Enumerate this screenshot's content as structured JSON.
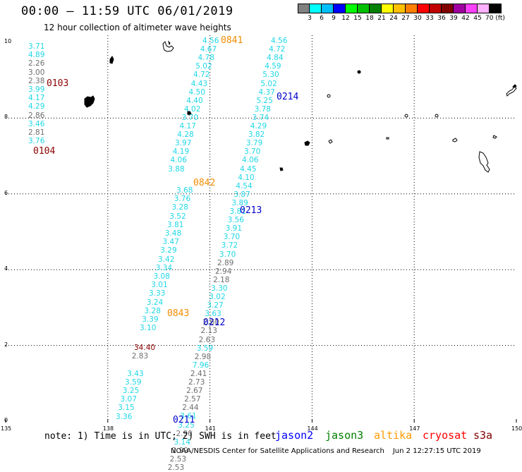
{
  "header": {
    "title": "00:00 – 11:59 UTC 06/01/2019",
    "subtitle": "12 hour collection of altimeter wave heights"
  },
  "legend": {
    "colors": [
      "#808080",
      "#00ffff",
      "#00bfff",
      "#0000ff",
      "#00ff00",
      "#00c000",
      "#008000",
      "#ffff00",
      "#ffc000",
      "#ff8000",
      "#ff0000",
      "#c00000",
      "#800000",
      "#a000a0",
      "#ff40ff",
      "#ffb0ff",
      "#000000"
    ],
    "labels": [
      "3",
      "6",
      "9",
      "12",
      "15",
      "18",
      "21",
      "24",
      "27",
      "30",
      "33",
      "36",
      "39",
      "42",
      "45",
      "70 (ft)"
    ]
  },
  "axes": {
    "x_ticks": [
      "135",
      "138",
      "141",
      "144",
      "147",
      "150"
    ],
    "y_ticks": [
      "0",
      "2",
      "4",
      "6",
      "8",
      "10"
    ]
  },
  "colors": {
    "cyan": "#1fd7e6",
    "gray": "#6e6e6e",
    "darkred": "#8b0000",
    "orange": "#f28c00",
    "blue": "#0000cc"
  },
  "tracks": [
    {
      "id": "t0103",
      "color": "gray",
      "anchor": [
        40,
        66
      ],
      "dx": 0,
      "dy": 12.2,
      "values": [
        {
          "v": "3.71",
          "c": "cyan"
        },
        {
          "v": "4.89",
          "c": "cyan"
        },
        {
          "v": "2.26",
          "c": "gray"
        },
        {
          "v": "3.00",
          "c": "gray"
        },
        {
          "v": "2.38",
          "c": "gray"
        },
        {
          "v": "3.99",
          "c": "cyan"
        },
        {
          "v": "4.17",
          "c": "cyan"
        },
        {
          "v": "4.29",
          "c": "cyan"
        },
        {
          "v": "2.86",
          "c": "gray"
        },
        {
          "v": "3.46",
          "c": "cyan"
        },
        {
          "v": "2.81",
          "c": "gray"
        },
        {
          "v": "3.76",
          "c": "cyan"
        }
      ]
    },
    {
      "id": "t0841",
      "color": "cyan",
      "anchor": [
        287,
        58
      ],
      "dx": -1.3,
      "dy": 12.1,
      "values": [
        {
          "v": "4.56",
          "c": "cyan"
        },
        {
          "v": "4.67",
          "c": "cyan"
        },
        {
          "v": "4.78",
          "c": "cyan"
        },
        {
          "v": "5.02",
          "c": "cyan"
        },
        {
          "v": "4.72",
          "c": "cyan"
        },
        {
          "v": "4.43",
          "c": "cyan"
        },
        {
          "v": "4.50",
          "c": "cyan"
        },
        {
          "v": "4.40",
          "c": "cyan"
        },
        {
          "v": "4.02",
          "c": "cyan"
        },
        {
          "v": "3.70",
          "c": "cyan"
        },
        {
          "v": "4.17",
          "c": "cyan"
        },
        {
          "v": "4.28",
          "c": "cyan"
        },
        {
          "v": "3.97",
          "c": "cyan"
        },
        {
          "v": "4.19",
          "c": "cyan"
        },
        {
          "v": "4.06",
          "c": "cyan"
        },
        {
          "v": "3.88",
          "c": "cyan"
        }
      ]
    },
    {
      "id": "t0842",
      "color": "cyan",
      "anchor": [
        250,
        270
      ],
      "dx": -1.3,
      "dy": 12.2,
      "values": [
        {
          "v": "3.68",
          "c": "cyan"
        },
        {
          "v": "3.76",
          "c": "cyan"
        },
        {
          "v": "3.28",
          "c": "cyan"
        },
        {
          "v": "3.52",
          "c": "cyan"
        },
        {
          "v": "3.81",
          "c": "cyan"
        },
        {
          "v": "3.48",
          "c": "cyan"
        },
        {
          "v": "3.47",
          "c": "cyan"
        },
        {
          "v": "3.29",
          "c": "cyan"
        },
        {
          "v": "3.42",
          "c": "cyan"
        },
        {
          "v": "3.34",
          "c": "cyan"
        },
        {
          "v": "3.08",
          "c": "cyan"
        },
        {
          "v": "3.01",
          "c": "cyan"
        },
        {
          "v": "3.33",
          "c": "cyan"
        },
        {
          "v": "3.24",
          "c": "cyan"
        },
        {
          "v": "3.28",
          "c": "cyan"
        },
        {
          "v": "3.39",
          "c": "cyan"
        },
        {
          "v": "3.10",
          "c": "cyan"
        }
      ]
    },
    {
      "id": "t0843",
      "color": "cyan",
      "anchor": [
        190,
        493
      ],
      "dx": -1.3,
      "dy": 12.2,
      "values": [
        {
          "v": "34.40",
          "c": "darkred"
        },
        {
          "v": "2.83",
          "c": "gray"
        },
        {
          "v": "",
          "c": "gray"
        },
        {
          "v": "3.43",
          "c": "cyan"
        },
        {
          "v": "3.59",
          "c": "cyan"
        },
        {
          "v": "3.25",
          "c": "cyan"
        },
        {
          "v": "3.07",
          "c": "cyan"
        },
        {
          "v": "3.15",
          "c": "cyan"
        },
        {
          "v": "3.36",
          "c": "cyan"
        }
      ]
    },
    {
      "id": "t0214",
      "color": "cyan",
      "anchor": [
        384,
        58
      ],
      "dx": -1.3,
      "dy": 12.1,
      "values": [
        {
          "v": "4.56",
          "c": "cyan"
        },
        {
          "v": "4.72",
          "c": "cyan"
        },
        {
          "v": "4.84",
          "c": "cyan"
        },
        {
          "v": "4.59",
          "c": "cyan"
        },
        {
          "v": "5.30",
          "c": "cyan"
        },
        {
          "v": "5.02",
          "c": "cyan"
        },
        {
          "v": "4.37",
          "c": "cyan"
        },
        {
          "v": "5.25",
          "c": "cyan"
        },
        {
          "v": "3.78",
          "c": "cyan"
        },
        {
          "v": "3.74",
          "c": "cyan"
        },
        {
          "v": "4.29",
          "c": "cyan"
        },
        {
          "v": "3.82",
          "c": "cyan"
        },
        {
          "v": "3.79",
          "c": "cyan"
        },
        {
          "v": "3.70",
          "c": "cyan"
        },
        {
          "v": "4.06",
          "c": "cyan"
        },
        {
          "v": "4.45",
          "c": "cyan"
        },
        {
          "v": "4.10",
          "c": "cyan"
        },
        {
          "v": "4.54",
          "c": "cyan"
        },
        {
          "v": "3.87",
          "c": "cyan"
        },
        {
          "v": "3.89",
          "c": "cyan"
        },
        {
          "v": "3.81",
          "c": "cyan"
        },
        {
          "v": "3.56",
          "c": "cyan"
        },
        {
          "v": "3.91",
          "c": "cyan"
        },
        {
          "v": "3.70",
          "c": "cyan"
        },
        {
          "v": "3.72",
          "c": "cyan"
        },
        {
          "v": "3.70",
          "c": "cyan"
        },
        {
          "v": "2.89",
          "c": "gray"
        },
        {
          "v": "2.94",
          "c": "gray"
        },
        {
          "v": "2.18",
          "c": "gray"
        },
        {
          "v": "3.30",
          "c": "cyan"
        },
        {
          "v": "3.02",
          "c": "cyan"
        },
        {
          "v": "3.27",
          "c": "cyan"
        },
        {
          "v": "3.63",
          "c": "cyan"
        },
        {
          "v": "2.60",
          "c": "gray"
        },
        {
          "v": "2.13",
          "c": "gray"
        },
        {
          "v": "2.63",
          "c": "gray"
        },
        {
          "v": "3.59",
          "c": "cyan"
        },
        {
          "v": "2.98",
          "c": "gray"
        },
        {
          "v": "7.96",
          "c": "cyan"
        },
        {
          "v": "2.41",
          "c": "gray"
        },
        {
          "v": "2.73",
          "c": "gray"
        },
        {
          "v": "2.67",
          "c": "gray"
        },
        {
          "v": "2.57",
          "c": "gray"
        },
        {
          "v": "2.44",
          "c": "gray"
        },
        {
          "v": "3.61",
          "c": "cyan"
        },
        {
          "v": "3.25",
          "c": "cyan"
        },
        {
          "v": "2.90",
          "c": "gray"
        },
        {
          "v": "3.14",
          "c": "cyan"
        },
        {
          "v": "2.99",
          "c": "gray"
        },
        {
          "v": "2.53",
          "c": "gray"
        },
        {
          "v": "2.53",
          "c": "gray"
        }
      ]
    }
  ],
  "time_labels": [
    {
      "text": "0841",
      "color": "orange"
    },
    {
      "text": "0103",
      "color": "darkred"
    },
    {
      "text": "0214",
      "color": "blue"
    },
    {
      "text": "0104",
      "color": "darkred"
    },
    {
      "text": "0842",
      "color": "orange"
    },
    {
      "text": "0213",
      "color": "blue"
    },
    {
      "text": "0843",
      "color": "orange"
    },
    {
      "text": "0212",
      "color": "blue"
    },
    {
      "text": "0211",
      "color": "blue"
    }
  ],
  "footer": {
    "note": "note: 1) Time is in UTC; 2) SWH is in feet",
    "satellites": [
      {
        "name": "jason2",
        "color": "#0000ff"
      },
      {
        "name": "jason3",
        "color": "#008000"
      },
      {
        "name": "altika",
        "color": "#ff9900"
      },
      {
        "name": "cryosat",
        "color": "#ff0000"
      },
      {
        "name": "s3a",
        "color": "#800000"
      }
    ],
    "credit": "NOAA/NESDIS Center for Satellite Applications and Research",
    "timestamp": "Jun  2 12:27:15 UTC 2019"
  }
}
